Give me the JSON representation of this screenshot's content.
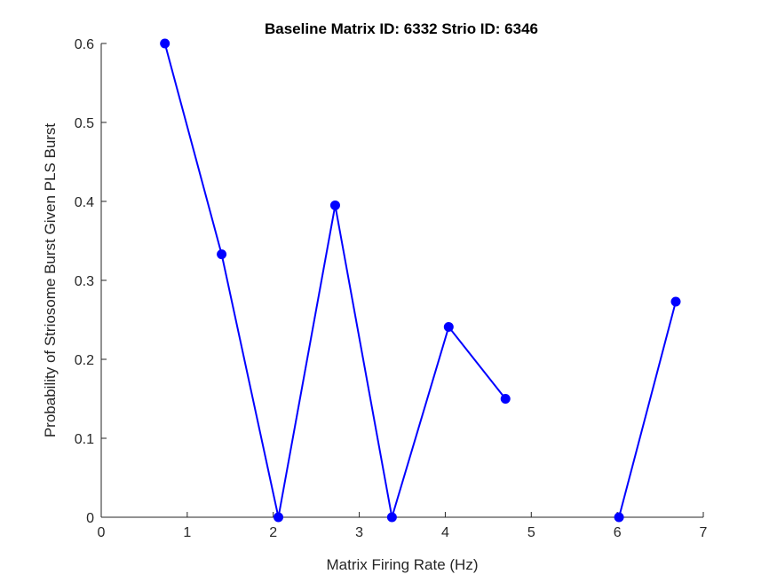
{
  "chart_data": {
    "type": "line",
    "title": "Baseline Matrix ID: 6332 Strio ID: 6346",
    "xlabel": "Matrix Firing Rate (Hz)",
    "ylabel": "Probability of Striosome Burst Given PLS Burst",
    "xlim": [
      0,
      7
    ],
    "ylim": [
      0,
      0.6
    ],
    "xticks": [
      "0",
      "1",
      "2",
      "3",
      "4",
      "5",
      "6",
      "7"
    ],
    "yticks": [
      "0",
      "0.1",
      "0.2",
      "0.3",
      "0.4",
      "0.5",
      "0.6"
    ],
    "grid": false,
    "series": [
      {
        "color": "#0000ff",
        "marker": "circle",
        "x": [
          0.74,
          1.4,
          2.06,
          2.72,
          3.38,
          4.04,
          4.7,
          5.36,
          6.02,
          6.68
        ],
        "y": [
          0.6,
          0.333,
          0,
          0.395,
          0,
          0.241,
          0.15,
          null,
          0,
          0.273
        ]
      }
    ]
  }
}
